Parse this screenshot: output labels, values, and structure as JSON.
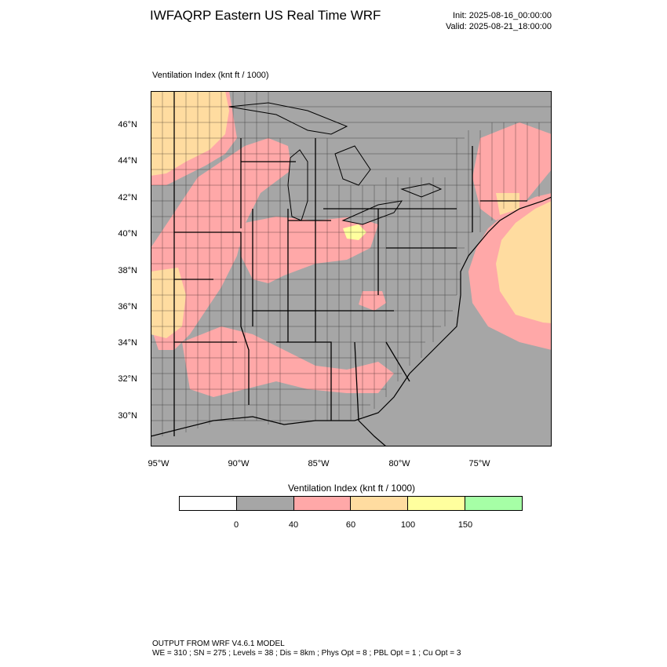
{
  "header": {
    "title": "IWFAQRP Eastern US Real Time WRF",
    "init": "Init: 2025-08-16_00:00:00",
    "valid": "Valid: 2025-08-21_18:00:00"
  },
  "map": {
    "field_label": "Ventilation Index   (knt ft / 1000)",
    "lat_labels": [
      "46°N",
      "44°N",
      "42°N",
      "40°N",
      "38°N",
      "36°N",
      "34°N",
      "32°N",
      "30°N"
    ],
    "lon_labels": [
      "95°W",
      "90°W",
      "85°W",
      "80°W",
      "75°W"
    ],
    "colors": {
      "lt0": "#ffffff",
      "0_40": "#a6a6a6",
      "40_60": "#ffa8a8",
      "60_100": "#ffdca0",
      "100_150": "#ffff9e",
      "gt150": "#a6ffa6",
      "water": "#a6a6a6",
      "boundary": "#000000"
    }
  },
  "colorbar": {
    "title": "Ventilation Index  (knt ft / 1000)",
    "colors": [
      "#ffffff",
      "#a6a6a6",
      "#ffa8a8",
      "#ffdca0",
      "#ffff9e",
      "#a6ffa6"
    ],
    "labels": [
      "0",
      "40",
      "60",
      "100",
      "150"
    ]
  },
  "footer": {
    "line1": "OUTPUT FROM WRF V4.6.1 MODEL",
    "line2": "WE = 310 ; SN = 275 ; Levels = 38 ; Dis = 8km ; Phys Opt = 8 ; PBL Opt = 1 ; Cu Opt = 3"
  }
}
